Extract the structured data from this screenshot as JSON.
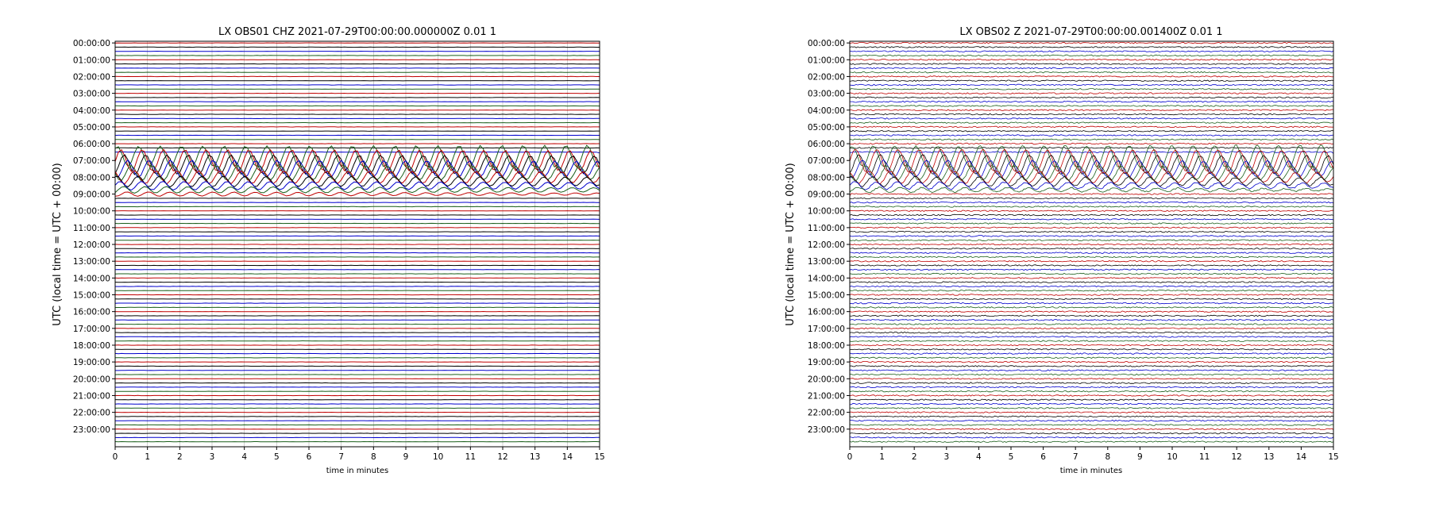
{
  "chart_data": [
    {
      "type": "line",
      "subtype": "dayplot",
      "title": "LX OBS01 CHZ 2021-07-29T00:00:00.000000Z 0.01 1",
      "xlabel": "time in minutes",
      "ylabel": "UTC (local time = UTC + 00:00)",
      "xlim": [
        0,
        15
      ],
      "x_ticks": [
        "0",
        "1",
        "2",
        "3",
        "4",
        "5",
        "6",
        "7",
        "8",
        "9",
        "10",
        "11",
        "12",
        "13",
        "14",
        "15"
      ],
      "y_ticks": [
        "00:00:00",
        "01:00:00",
        "02:00:00",
        "03:00:00",
        "04:00:00",
        "05:00:00",
        "06:00:00",
        "07:00:00",
        "08:00:00",
        "09:00:00",
        "10:00:00",
        "11:00:00",
        "12:00:00",
        "13:00:00",
        "14:00:00",
        "15:00:00",
        "16:00:00",
        "17:00:00",
        "18:00:00",
        "19:00:00",
        "20:00:00",
        "21:00:00",
        "22:00:00",
        "23:00:00"
      ],
      "trace_interval_minutes": 15,
      "trace_colors": [
        "#c00000",
        "#000000",
        "#0000cc",
        "#1a5e1a"
      ],
      "grid": "vertical",
      "event": {
        "start_time": "06:45:00",
        "peak_time": "07:00:00",
        "end_time": "09:15:00"
      },
      "noise": "low"
    },
    {
      "type": "line",
      "subtype": "dayplot",
      "title": "LX OBS02 Z 2021-07-29T00:00:00.001400Z 0.01 1",
      "xlabel": "time in minutes",
      "ylabel": "UTC (local time = UTC + 00:00)",
      "xlim": [
        0,
        15
      ],
      "x_ticks": [
        "0",
        "1",
        "2",
        "3",
        "4",
        "5",
        "6",
        "7",
        "8",
        "9",
        "10",
        "11",
        "12",
        "13",
        "14",
        "15"
      ],
      "y_ticks": [
        "00:00:00",
        "01:00:00",
        "02:00:00",
        "03:00:00",
        "04:00:00",
        "05:00:00",
        "06:00:00",
        "07:00:00",
        "08:00:00",
        "09:00:00",
        "10:00:00",
        "11:00:00",
        "12:00:00",
        "13:00:00",
        "14:00:00",
        "15:00:00",
        "16:00:00",
        "17:00:00",
        "18:00:00",
        "19:00:00",
        "20:00:00",
        "21:00:00",
        "22:00:00",
        "23:00:00"
      ],
      "trace_interval_minutes": 15,
      "trace_colors": [
        "#c00000",
        "#000000",
        "#0000cc",
        "#1a5e1a"
      ],
      "grid": "none",
      "event": {
        "start_time": "06:45:00",
        "peak_time": "07:00:00",
        "end_time": "09:00:00"
      },
      "noise": "high"
    }
  ]
}
